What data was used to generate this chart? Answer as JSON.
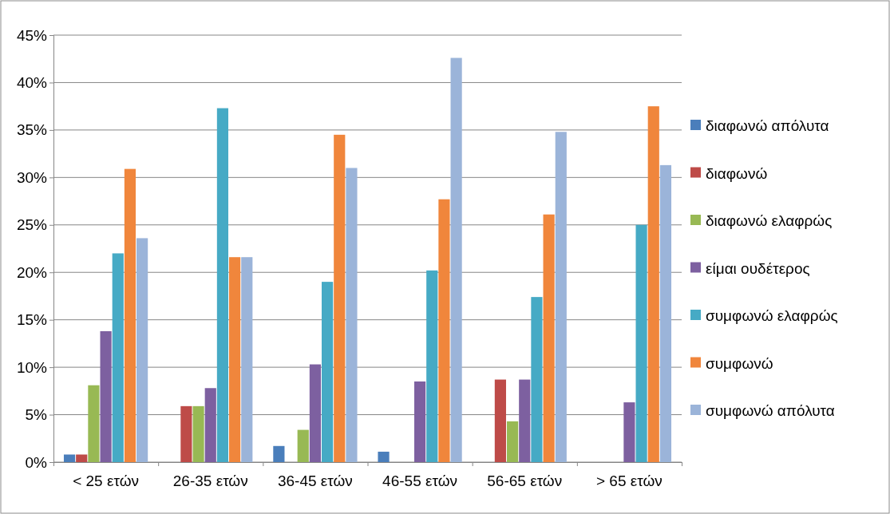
{
  "chart_data": {
    "type": "bar",
    "categories": [
      "< 25 ετών",
      "26-35 ετών",
      "36-45 ετών",
      "46-55 ετών",
      "56-65 ετών",
      "> 65 ετών"
    ],
    "series": [
      {
        "name": "διαφωνώ απόλυτα",
        "color": "#4a7ebb",
        "values": [
          0.8,
          0,
          1.7,
          1.1,
          0,
          0
        ]
      },
      {
        "name": "διαφωνώ",
        "color": "#be4b48",
        "values": [
          0.8,
          5.9,
          0,
          0,
          8.7,
          0
        ]
      },
      {
        "name": "διαφωνώ ελαφρώς",
        "color": "#98b954",
        "values": [
          8.1,
          5.9,
          3.4,
          0,
          4.3,
          0
        ]
      },
      {
        "name": "είμαι ουδέτερος",
        "color": "#7d60a0",
        "values": [
          13.8,
          7.8,
          10.3,
          8.5,
          8.7,
          6.3
        ]
      },
      {
        "name": "συμφωνώ ελαφρώς",
        "color": "#46aac5",
        "values": [
          22.0,
          37.3,
          19.0,
          20.2,
          17.4,
          25.0
        ]
      },
      {
        "name": "συμφωνώ",
        "color": "#f0863c",
        "values": [
          30.9,
          21.6,
          34.5,
          27.7,
          26.1,
          37.5
        ]
      },
      {
        "name": "συμφωνώ απόλυτα",
        "color": "#9bb4d9",
        "values": [
          23.6,
          21.6,
          31.0,
          42.6,
          34.8,
          31.3
        ]
      }
    ],
    "ylim": [
      0,
      45
    ],
    "yticks": [
      {
        "value": 0,
        "label": "0%"
      },
      {
        "value": 5,
        "label": "5%"
      },
      {
        "value": 10,
        "label": "10%"
      },
      {
        "value": 15,
        "label": "15%"
      },
      {
        "value": 20,
        "label": "20%"
      },
      {
        "value": 25,
        "label": "25%"
      },
      {
        "value": 30,
        "label": "30%"
      },
      {
        "value": 35,
        "label": "35%"
      },
      {
        "value": 40,
        "label": "40%"
      },
      {
        "value": 45,
        "label": "45%"
      }
    ],
    "grid": "y",
    "legend": "right"
  }
}
